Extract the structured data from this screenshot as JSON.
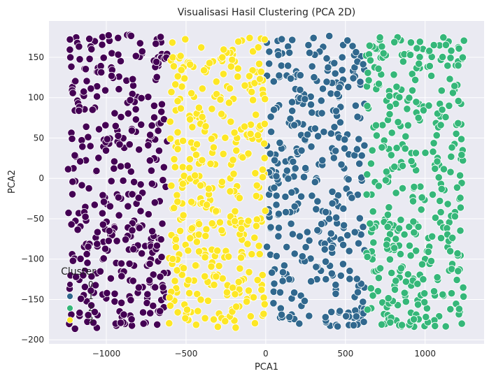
{
  "chart_data": {
    "type": "scatter",
    "title": "Visualisasi Hasil Clustering (PCA 2D)",
    "xlabel": "PCA1",
    "ylabel": "PCA2",
    "xlim": [
      -1360,
      1370
    ],
    "ylim": [
      -205,
      195
    ],
    "xticks": [
      -1000,
      -500,
      0,
      500,
      1000
    ],
    "xtick_labels": [
      "−1000",
      "−500",
      "0",
      "500",
      "1000"
    ],
    "yticks": [
      -200,
      -150,
      -100,
      -50,
      0,
      50,
      100,
      150
    ],
    "ytick_labels": [
      "−200",
      "−150",
      "−100",
      "−50",
      "0",
      "50",
      "100",
      "150"
    ],
    "grid": true,
    "legend": {
      "title": "Cluster",
      "placement": "lower-left",
      "entries": [
        "0",
        "1",
        "2",
        "3"
      ]
    },
    "background_color": "#eaeaf2",
    "series": [
      {
        "name": "0",
        "color": "#440154",
        "x_range": [
          -1240,
          -615
        ],
        "y_range": [
          -188,
          178
        ],
        "count": 360,
        "points_sample": [
          [
            -1200,
            120
          ],
          [
            -1100,
            40
          ],
          [
            -950,
            -60
          ],
          [
            -850,
            -170
          ],
          [
            -700,
            90
          ],
          [
            -640,
            -140
          ]
        ]
      },
      {
        "name": "1",
        "color": "#31688e",
        "x_range": [
          5,
          620
        ],
        "y_range": [
          -185,
          178
        ],
        "count": 340,
        "points_sample": [
          [
            50,
            120
          ],
          [
            200,
            30
          ],
          [
            350,
            -80
          ],
          [
            480,
            150
          ],
          [
            600,
            -160
          ]
        ]
      },
      {
        "name": "2",
        "color": "#35b779",
        "x_range": [
          630,
          1245
        ],
        "y_range": [
          -185,
          178
        ],
        "count": 360,
        "points_sample": [
          [
            700,
            160
          ],
          [
            850,
            20
          ],
          [
            1000,
            -100
          ],
          [
            1150,
            90
          ],
          [
            1230,
            -180
          ]
        ]
      },
      {
        "name": "3",
        "color": "#fde725",
        "x_range": [
          -610,
          0
        ],
        "y_range": [
          -185,
          178
        ],
        "count": 360,
        "points_sample": [
          [
            -550,
            150
          ],
          [
            -400,
            20
          ],
          [
            -250,
            -90
          ],
          [
            -100,
            110
          ],
          [
            -20,
            -170
          ]
        ]
      }
    ]
  }
}
